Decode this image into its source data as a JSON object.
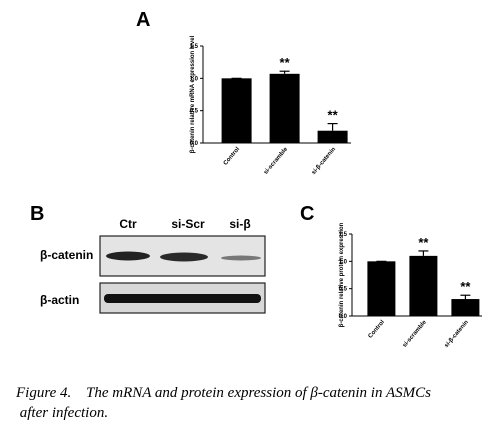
{
  "chart_data": [
    {
      "type": "bar",
      "panel": "A",
      "ylabel": "β-catenin relative mRNA expression level",
      "categories": [
        "Control",
        "si-scramble",
        "si-β-catenin"
      ],
      "values": [
        1.0,
        1.07,
        0.19
      ],
      "errors": [
        0,
        0.04,
        0.11
      ],
      "annotations": [
        null,
        "**",
        "**"
      ],
      "color": "#000000",
      "ylim": [
        0,
        1.5
      ],
      "yticks": [
        {
          "value": 0,
          "label": "0.0"
        },
        {
          "value": 0.5,
          "label": "0.5"
        },
        {
          "value": 1,
          "label": "1.0"
        },
        {
          "value": 1.5,
          "label": "1.5"
        }
      ]
    },
    {
      "type": "bar",
      "panel": "C",
      "ylabel": "β-catenin relative protein expression",
      "categories": [
        "Control",
        "si-scramble",
        "si-β-catenin"
      ],
      "values": [
        1.0,
        1.1,
        0.31
      ],
      "errors": [
        0,
        0.09,
        0.07
      ],
      "annotations": [
        null,
        "**",
        "**"
      ],
      "color": "#000000",
      "ylim": [
        0,
        1.5
      ],
      "yticks": [
        {
          "value": 0,
          "label": "0.0"
        },
        {
          "value": 0.5,
          "label": "0.5"
        },
        {
          "value": 1,
          "label": "1.0"
        },
        {
          "value": 1.5,
          "label": "1.5"
        }
      ]
    }
  ],
  "blot": {
    "panel": "B",
    "lanes": [
      "Ctr",
      "si-Scr",
      "si-β"
    ],
    "rows": [
      "β-catenin",
      "β-actin"
    ]
  },
  "caption": {
    "label": "Figure 4.",
    "text": "The mRNA and protein expression of β-catenin in ASMCs after infection."
  }
}
